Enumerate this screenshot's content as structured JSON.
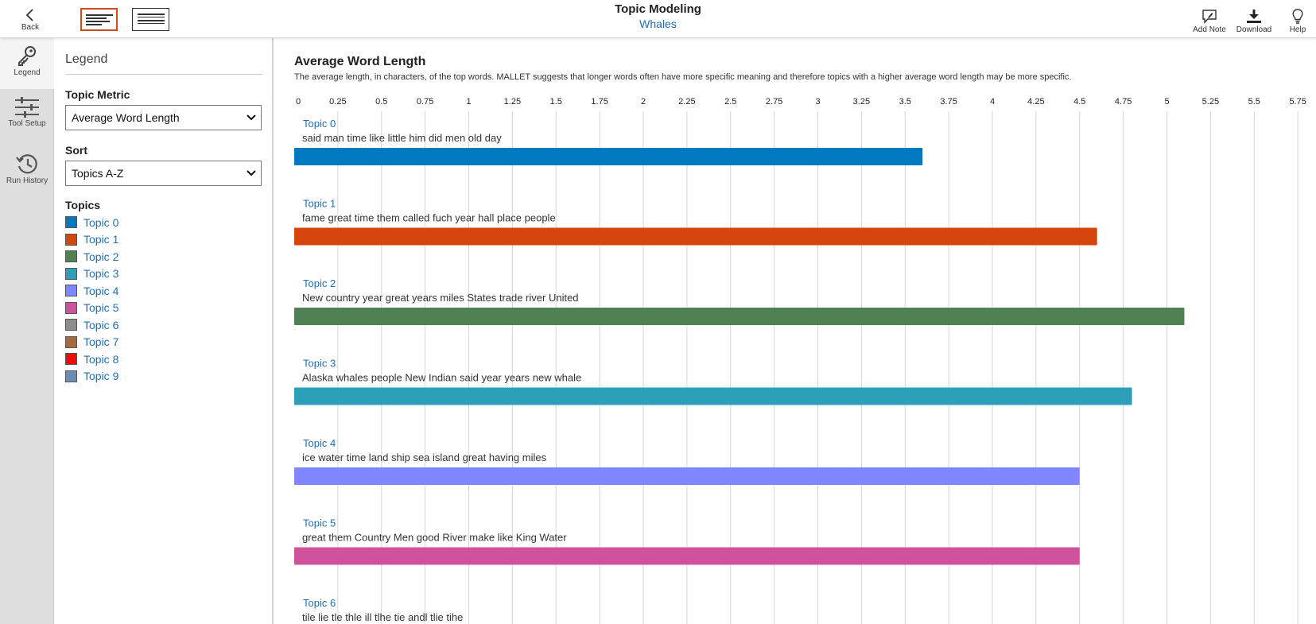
{
  "header": {
    "back_label": "Back",
    "title": "Topic Modeling",
    "subtitle": "Whales",
    "add_note_label": "Add Note",
    "download_label": "Download",
    "help_label": "Help"
  },
  "rail": {
    "legend_label": "Legend",
    "tool_setup_label": "Tool Setup",
    "run_history_label": "Run History"
  },
  "legend": {
    "title": "Legend",
    "metric_label": "Topic Metric",
    "metric_value": "Average Word Length",
    "sort_label": "Sort",
    "sort_value": "Topics A-Z",
    "topics_label": "Topics",
    "topics": [
      {
        "name": "Topic 0",
        "color": "#0079c1"
      },
      {
        "name": "Topic 1",
        "color": "#d4460c"
      },
      {
        "name": "Topic 2",
        "color": "#4f8152"
      },
      {
        "name": "Topic 3",
        "color": "#2ba0b8"
      },
      {
        "name": "Topic 4",
        "color": "#8086ff"
      },
      {
        "name": "Topic 5",
        "color": "#d1529c"
      },
      {
        "name": "Topic 6",
        "color": "#8d8d8d"
      },
      {
        "name": "Topic 7",
        "color": "#a56a3f"
      },
      {
        "name": "Topic 8",
        "color": "#f00b0b"
      },
      {
        "name": "Topic 9",
        "color": "#6b8cb5"
      }
    ]
  },
  "chart": {
    "title": "Average Word Length",
    "subtitle": "The average length, in characters, of the top words. MALLET suggests that longer words often have more specific meaning and therefore topics with a higher average word length may be more specific."
  },
  "chart_data": {
    "type": "bar",
    "orientation": "horizontal",
    "title": "Average Word Length",
    "xlim": [
      0,
      5.75
    ],
    "x_ticks": [
      "0",
      "0.25",
      "0.5",
      "0.75",
      "1",
      "1.25",
      "1.5",
      "1.75",
      "2",
      "2.25",
      "2.5",
      "2.75",
      "3",
      "3.25",
      "3.5",
      "3.75",
      "4",
      "4.25",
      "4.5",
      "4.75",
      "5",
      "5.25",
      "5.5",
      "5.75"
    ],
    "x_axis_position": "top",
    "grid": true,
    "categories": [
      "Topic 0",
      "Topic 1",
      "Topic 2",
      "Topic 3",
      "Topic 4",
      "Topic 5",
      "Topic 6"
    ],
    "words": [
      "said man time like little him did men old day",
      "fame great time them called fuch year hall place people",
      "New country year great years miles States trade river United",
      "Alaska whales people New Indian said year years new whale",
      "ice water time land ship sea island great having miles",
      "great them Country Men good River make like King Water",
      "tile lie tle thle ill tlhe tie andl tlie tihe"
    ],
    "values": [
      3.6,
      4.6,
      5.1,
      4.8,
      4.5,
      4.5,
      null
    ],
    "colors": [
      "#0079c1",
      "#d4460c",
      "#4f8152",
      "#2ba0b8",
      "#8086ff",
      "#d1529c",
      "#8d8d8d"
    ]
  }
}
